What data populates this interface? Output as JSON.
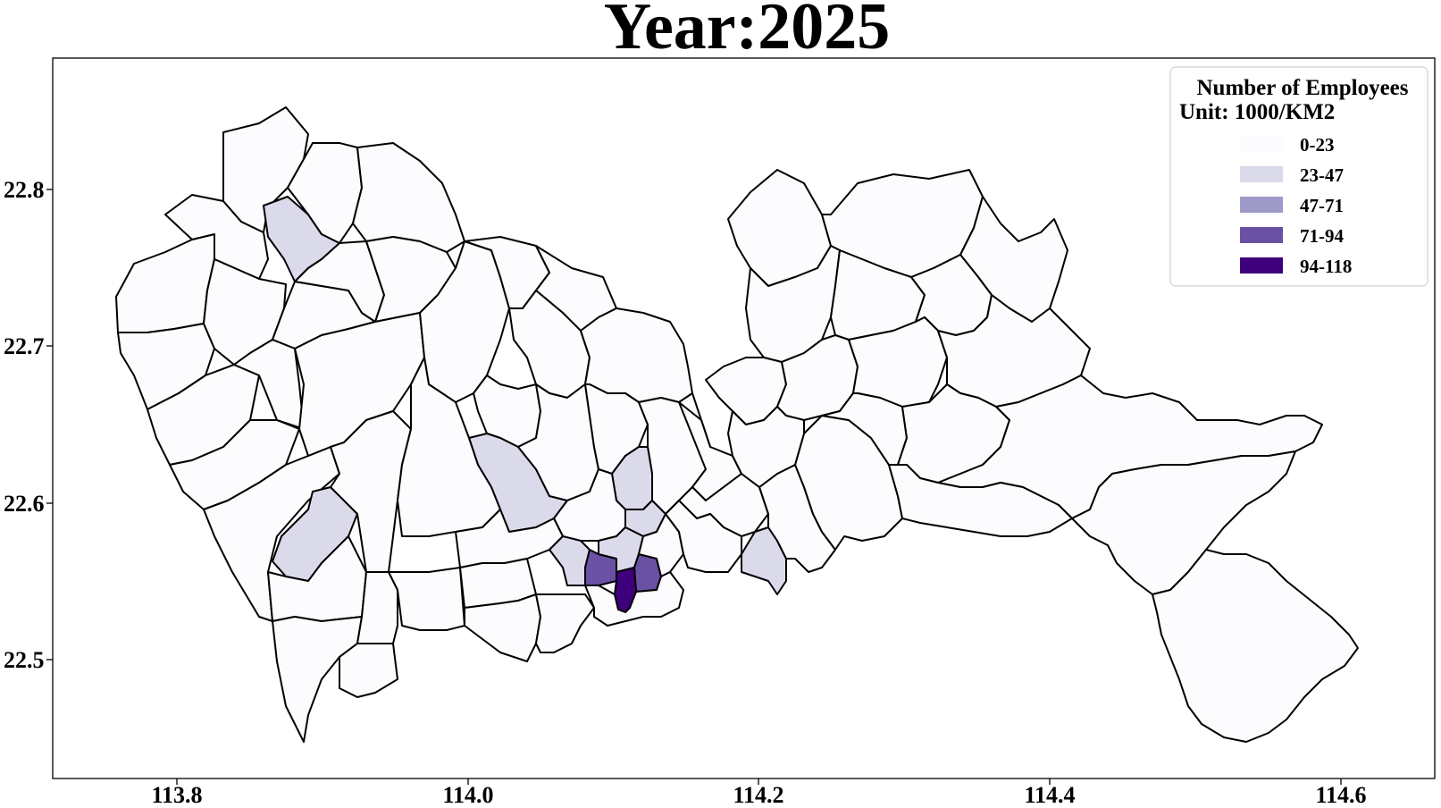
{
  "title": "Year:2025",
  "axes": {
    "x_ticks": [
      "113.8",
      "114.0",
      "114.2",
      "114.4",
      "114.6"
    ],
    "y_ticks": [
      "22.8",
      "22.7",
      "22.6",
      "22.5"
    ]
  },
  "legend": {
    "title_line1": "Number of Employees",
    "title_line2": "Unit: 1000/KM2",
    "position": "top-right",
    "items": [
      {
        "label": "0-23",
        "color": "#fcfbfd"
      },
      {
        "label": "23-47",
        "color": "#dadaeb"
      },
      {
        "label": "47-71",
        "color": "#9e9ac8"
      },
      {
        "label": "71-94",
        "color": "#6a51a3"
      },
      {
        "label": "94-118",
        "color": "#3f007d"
      }
    ]
  },
  "colors": {
    "frame": "#000000",
    "boundary": "#000000"
  }
}
